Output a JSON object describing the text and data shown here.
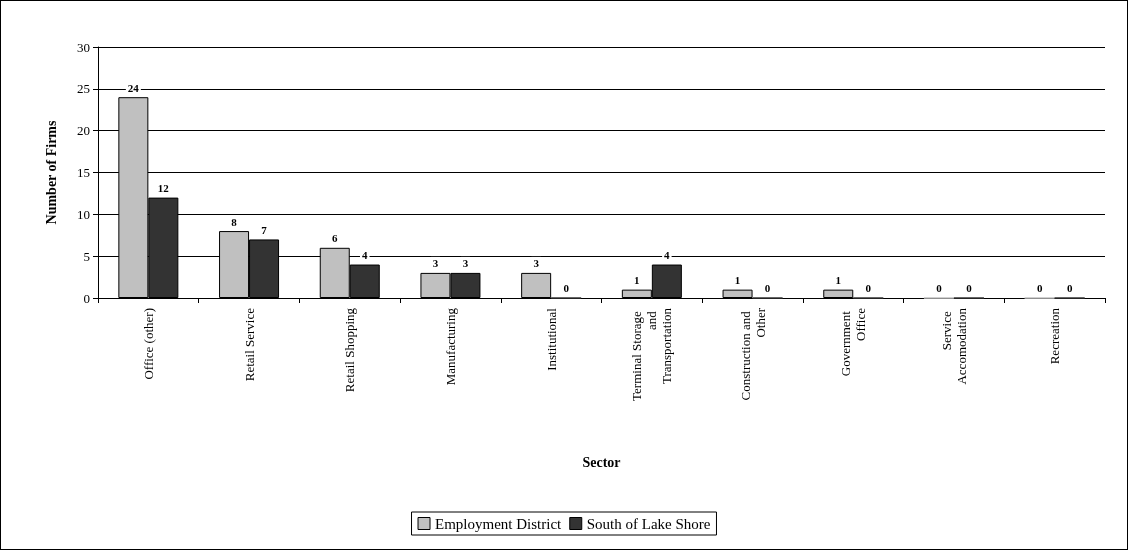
{
  "chart_data": {
    "type": "bar",
    "xlabel": "Sector",
    "ylabel": "Number of Firms",
    "categories": [
      "Office (other)",
      "Retail Service",
      "Retail Shopping",
      "Manufacturing",
      "Institutional",
      "Terminal Storage and Transportation",
      "Construction and Other",
      "Government Office",
      "Service Accomodation",
      "Recreation"
    ],
    "series": [
      {
        "name": "Employment District",
        "color": "#c0c0c0",
        "values": [
          24,
          8,
          6,
          3,
          3,
          1,
          1,
          1,
          0,
          0
        ]
      },
      {
        "name": "South of Lake Shore",
        "color": "#333333",
        "values": [
          12,
          7,
          4,
          3,
          0,
          4,
          0,
          0,
          0,
          0
        ]
      }
    ],
    "ylim": [
      0,
      30
    ],
    "yticks": [
      0,
      5,
      10,
      15,
      20,
      25,
      30
    ],
    "grid": "y",
    "legend": "bottom",
    "data_labels": true
  }
}
